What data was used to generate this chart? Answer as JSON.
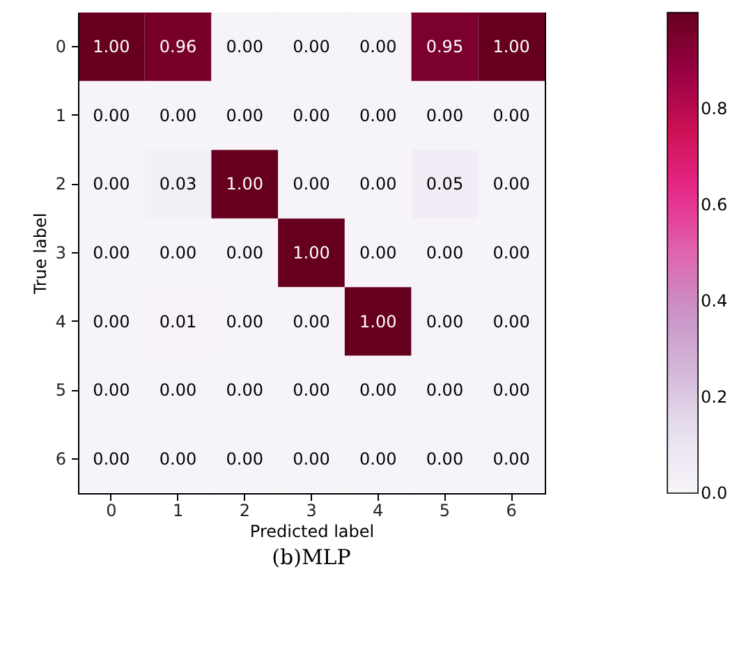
{
  "chart_data": {
    "type": "heatmap",
    "title": "(b)MLP",
    "xlabel": "Predicted label",
    "ylabel": "True label",
    "categories": [
      "0",
      "1",
      "2",
      "3",
      "4",
      "5",
      "6"
    ],
    "y_categories": [
      "0",
      "1",
      "2",
      "3",
      "4",
      "5",
      "6"
    ],
    "cells": [
      [
        1.0,
        0.96,
        0,
        0,
        0,
        0.95,
        1.0
      ],
      [
        0,
        0,
        0,
        0,
        0,
        0,
        0
      ],
      [
        0,
        0.03,
        1.0,
        0,
        0,
        0.05,
        0
      ],
      [
        0,
        0,
        0,
        1.0,
        0,
        0,
        0
      ],
      [
        0,
        0.01,
        0,
        0,
        1.0,
        0,
        0
      ],
      [
        0,
        0,
        0,
        0,
        0,
        0,
        0
      ],
      [
        0,
        0,
        0,
        0,
        0,
        0,
        0
      ]
    ],
    "cell_labels": [
      [
        "1.00",
        "0.96",
        "0.00",
        "0.00",
        "0.00",
        "0.95",
        "1.00"
      ],
      [
        "0.00",
        "0.00",
        "0.00",
        "0.00",
        "0.00",
        "0.00",
        "0.00"
      ],
      [
        "0.00",
        "0.03",
        "1.00",
        "0.00",
        "0.00",
        "0.05",
        "0.00"
      ],
      [
        "0.00",
        "0.00",
        "0.00",
        "1.00",
        "0.00",
        "0.00",
        "0.00"
      ],
      [
        "0.00",
        "0.01",
        "0.00",
        "0.00",
        "1.00",
        "0.00",
        "0.00"
      ],
      [
        "0.00",
        "0.00",
        "0.00",
        "0.00",
        "0.00",
        "0.00",
        "0.00"
      ],
      [
        "0.00",
        "0.00",
        "0.00",
        "0.00",
        "0.00",
        "0.00",
        "0.00"
      ]
    ],
    "clim": [
      0,
      1
    ],
    "cticks": [
      {
        "value": 0,
        "label": "0.0"
      },
      0.2,
      0.4,
      0.6,
      0.8
    ]
  }
}
